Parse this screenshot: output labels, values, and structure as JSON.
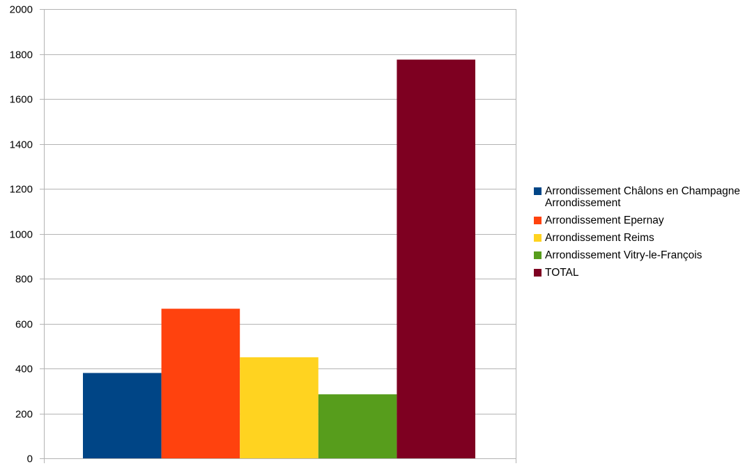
{
  "chart_data": {
    "type": "bar",
    "title": "",
    "xlabel": "",
    "ylabel": "",
    "ylim": [
      0,
      2000
    ],
    "yticks": [
      0,
      200,
      400,
      600,
      800,
      1000,
      1200,
      1400,
      1600,
      1800,
      2000
    ],
    "ytick_labels": [
      "0",
      "200",
      "400",
      "600",
      "800",
      "1000",
      "1200",
      "1400",
      "1600",
      "1800",
      "2000"
    ],
    "grid": true,
    "legend_position": "right",
    "series": [
      {
        "name": "Arrondissement Châlons en Champagne Arrondissement",
        "values": [
          380
        ],
        "color": "#004586"
      },
      {
        "name": "Arrondissement Epernay",
        "values": [
          666
        ],
        "color": "#ff420e"
      },
      {
        "name": "Arrondissement Reims",
        "values": [
          450
        ],
        "color": "#ffd320"
      },
      {
        "name": "Arrondissement Vitry-le-François",
        "values": [
          285
        ],
        "color": "#579d1c"
      },
      {
        "name": "TOTAL",
        "values": [
          1775
        ],
        "color": "#7e0021"
      }
    ]
  }
}
